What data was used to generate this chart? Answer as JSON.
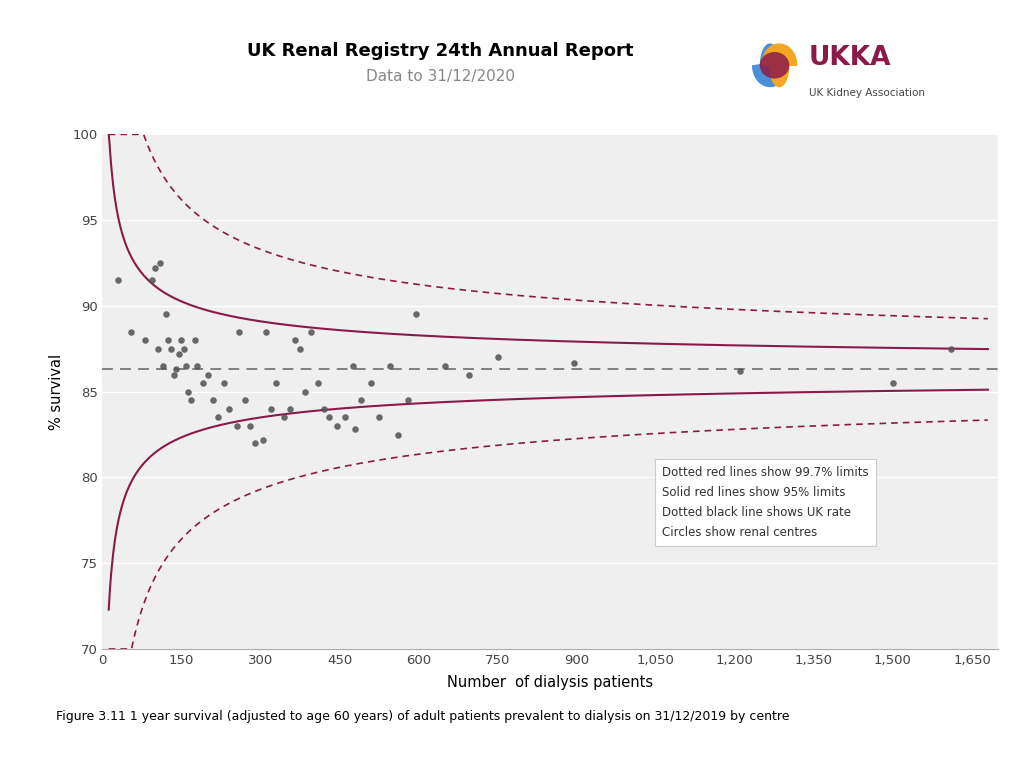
{
  "title": "UK Renal Registry 24th Annual Report",
  "subtitle": "Data to 31/12/2020",
  "xlabel": "Number  of dialysis patients",
  "ylabel": "% survival",
  "caption": "Figure 3.11 1 year survival (adjusted to age 60 years) of adult patients prevalent to dialysis on 31/12/2019 by centre",
  "xlim": [
    0,
    1700
  ],
  "ylim": [
    70,
    100
  ],
  "xticks": [
    0,
    150,
    300,
    450,
    600,
    750,
    900,
    1050,
    1200,
    1350,
    1500,
    1650
  ],
  "yticks": [
    70,
    75,
    80,
    85,
    90,
    95,
    100
  ],
  "uk_rate": 86.3,
  "scatter_x": [
    30,
    55,
    80,
    95,
    100,
    105,
    110,
    115,
    120,
    125,
    130,
    135,
    140,
    145,
    150,
    155,
    158,
    162,
    168,
    175,
    180,
    190,
    200,
    210,
    220,
    230,
    240,
    255,
    260,
    270,
    280,
    290,
    305,
    310,
    320,
    330,
    345,
    355,
    365,
    375,
    385,
    395,
    410,
    420,
    430,
    445,
    460,
    475,
    480,
    490,
    510,
    525,
    545,
    560,
    580,
    595,
    650,
    695,
    750,
    895,
    1210,
    1500,
    1610
  ],
  "scatter_y": [
    91.5,
    88.5,
    88.0,
    91.5,
    92.2,
    87.5,
    92.5,
    86.5,
    89.5,
    88.0,
    87.5,
    86.0,
    86.3,
    87.2,
    88.0,
    87.5,
    86.5,
    85.0,
    84.5,
    88.0,
    86.5,
    85.5,
    86.0,
    84.5,
    83.5,
    85.5,
    84.0,
    83.0,
    88.5,
    84.5,
    83.0,
    82.0,
    82.2,
    88.5,
    84.0,
    85.5,
    83.5,
    84.0,
    88.0,
    87.5,
    85.0,
    88.5,
    85.5,
    84.0,
    83.5,
    83.0,
    83.5,
    86.5,
    82.8,
    84.5,
    85.5,
    83.5,
    86.5,
    82.5,
    84.5,
    89.5,
    86.5,
    86.0,
    87.0,
    86.7,
    86.2,
    85.5,
    87.5
  ],
  "dark_red": "#8B1A4A",
  "scatter_color": "#555555",
  "bg_color": "#efefef",
  "annotation_text": "Dotted red lines show 99.7% limits\nSolid red lines show 95% limits\nDotted black line shows UK rate\nCircles show renal centres",
  "funnel_scale_95": 0.72,
  "funnel_scale_997": 1.14
}
